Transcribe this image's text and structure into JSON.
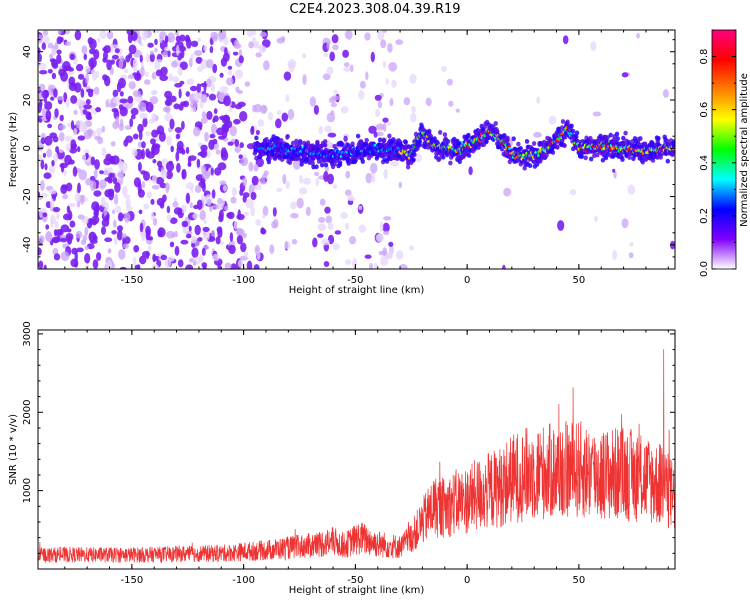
{
  "title": "C2E4.2023.308.04.39.R19",
  "chart_data": [
    {
      "type": "heatmap",
      "xlabel": "Height of straight line (km)",
      "ylabel": "Frequency (Hz)",
      "xlim": [
        -192,
        93
      ],
      "ylim": [
        -50,
        49
      ],
      "xticks": [
        -150,
        -100,
        -50,
        0,
        50
      ],
      "yticks": [
        -40,
        -20,
        0,
        20,
        40
      ],
      "colorbar": {
        "label": "Normalized spectral amplitude",
        "range": [
          0.0,
          0.9
        ],
        "ticks": [
          "0.0",
          "0.2",
          "0.4",
          "0.6",
          "0.8"
        ],
        "tick_values": [
          0.0,
          0.2,
          0.4,
          0.6,
          0.8
        ],
        "colormap": [
          "#ffffff",
          "#7f00ff",
          "#0000ff",
          "#00ffff",
          "#00ff00",
          "#ffff00",
          "#ff8000",
          "#ff0000",
          "#ff0080"
        ]
      },
      "ridge": [
        [
          -92,
          0
        ],
        [
          -80,
          -1
        ],
        [
          -70,
          -2
        ],
        [
          -62,
          -3
        ],
        [
          -50,
          -1
        ],
        [
          -40,
          0
        ],
        [
          -30,
          -1
        ],
        [
          -25,
          -3
        ],
        [
          -22,
          4
        ],
        [
          -20,
          7
        ],
        [
          -15,
          1
        ],
        [
          -5,
          -1
        ],
        [
          5,
          4
        ],
        [
          10,
          7
        ],
        [
          15,
          3
        ],
        [
          20,
          -2
        ],
        [
          25,
          -4
        ],
        [
          35,
          -1
        ],
        [
          45,
          8
        ],
        [
          50,
          0
        ],
        [
          60,
          1
        ],
        [
          70,
          0
        ],
        [
          80,
          -1
        ],
        [
          93,
          0
        ]
      ]
    },
    {
      "type": "line",
      "xlabel": "Height of straight line (km)",
      "ylabel": "SNR (10 * v/v)",
      "xlim": [
        -192,
        93
      ],
      "ylim": [
        0,
        3050
      ],
      "xticks": [
        -150,
        -100,
        -50,
        0,
        50
      ],
      "yticks": [
        1000,
        2000,
        3000
      ],
      "color": "#ee3333",
      "envelope": [
        [
          -192,
          180
        ],
        [
          -150,
          180
        ],
        [
          -110,
          200
        ],
        [
          -90,
          240
        ],
        [
          -70,
          300
        ],
        [
          -60,
          350
        ],
        [
          -55,
          300
        ],
        [
          -48,
          400
        ],
        [
          -40,
          320
        ],
        [
          -30,
          280
        ],
        [
          -25,
          400
        ],
        [
          -20,
          600
        ],
        [
          -15,
          800
        ],
        [
          -10,
          780
        ],
        [
          -5,
          850
        ],
        [
          0,
          880
        ],
        [
          5,
          950
        ],
        [
          10,
          1000
        ],
        [
          15,
          1050
        ],
        [
          20,
          1150
        ],
        [
          25,
          1200
        ],
        [
          30,
          1230
        ],
        [
          40,
          1250
        ],
        [
          50,
          1270
        ],
        [
          60,
          1200
        ],
        [
          70,
          1220
        ],
        [
          80,
          1150
        ],
        [
          88,
          1050
        ],
        [
          93,
          900
        ]
      ]
    }
  ]
}
